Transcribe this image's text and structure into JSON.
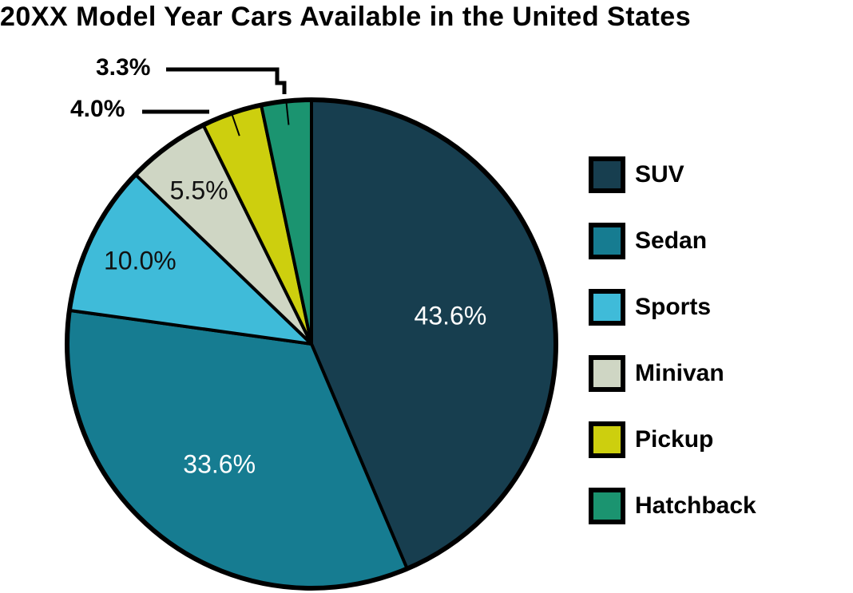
{
  "chart_data": {
    "type": "pie",
    "title": "20XX Model Year Cars Available in the United States",
    "categories": [
      "SUV",
      "Sedan",
      "Sports",
      "Minivan",
      "Pickup",
      "Hatchback"
    ],
    "values": [
      43.6,
      33.6,
      10.0,
      5.5,
      4.0,
      3.3
    ],
    "value_labels": [
      "43.6%",
      "33.6%",
      "10.0%",
      "5.5%",
      "4.0%",
      "3.3%"
    ],
    "colors": [
      "#173e4f",
      "#167c91",
      "#3fbbd9",
      "#cfd6c4",
      "#cdcf0e",
      "#1b9470"
    ],
    "start_angle": "12 o'clock",
    "direction": "clockwise",
    "legend_position": "right",
    "callouts": [
      "4.0%",
      "3.3%"
    ]
  },
  "title": "20XX Model Year Cars Available in the United States",
  "legend": [
    {
      "label": "SUV",
      "color": "#173e4f"
    },
    {
      "label": "Sedan",
      "color": "#167c91"
    },
    {
      "label": "Sports",
      "color": "#3fbbd9"
    },
    {
      "label": "Minivan",
      "color": "#cfd6c4"
    },
    {
      "label": "Pickup",
      "color": "#cdcf0e"
    },
    {
      "label": "Hatchback",
      "color": "#1b9470"
    }
  ]
}
